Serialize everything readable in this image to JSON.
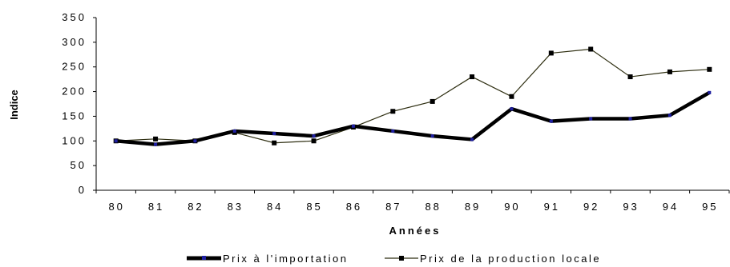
{
  "chart_data": {
    "type": "line",
    "title": "",
    "xlabel": "Années",
    "ylabel": "Indice",
    "categories": [
      "80",
      "81",
      "82",
      "83",
      "84",
      "85",
      "86",
      "87",
      "88",
      "89",
      "90",
      "91",
      "92",
      "93",
      "94",
      "95"
    ],
    "yticks": [
      "0",
      "50",
      "100",
      "150",
      "200",
      "250",
      "300",
      "350"
    ],
    "ylim": [
      0,
      350
    ],
    "grid": false,
    "legend_position": "bottom",
    "series": [
      {
        "name": "Prix à l'importation",
        "color": "#000000",
        "marker_color": "#1f1fa0",
        "values": [
          100,
          93,
          100,
          120,
          115,
          110,
          130,
          120,
          110,
          103,
          165,
          140,
          145,
          145,
          152,
          198
        ]
      },
      {
        "name": "Prix de la production locale",
        "color": "#2f2f12",
        "marker_color": "#000000",
        "values": [
          100,
          104,
          100,
          117,
          96,
          100,
          128,
          160,
          180,
          230,
          190,
          278,
          286,
          230,
          240,
          245
        ]
      }
    ]
  }
}
